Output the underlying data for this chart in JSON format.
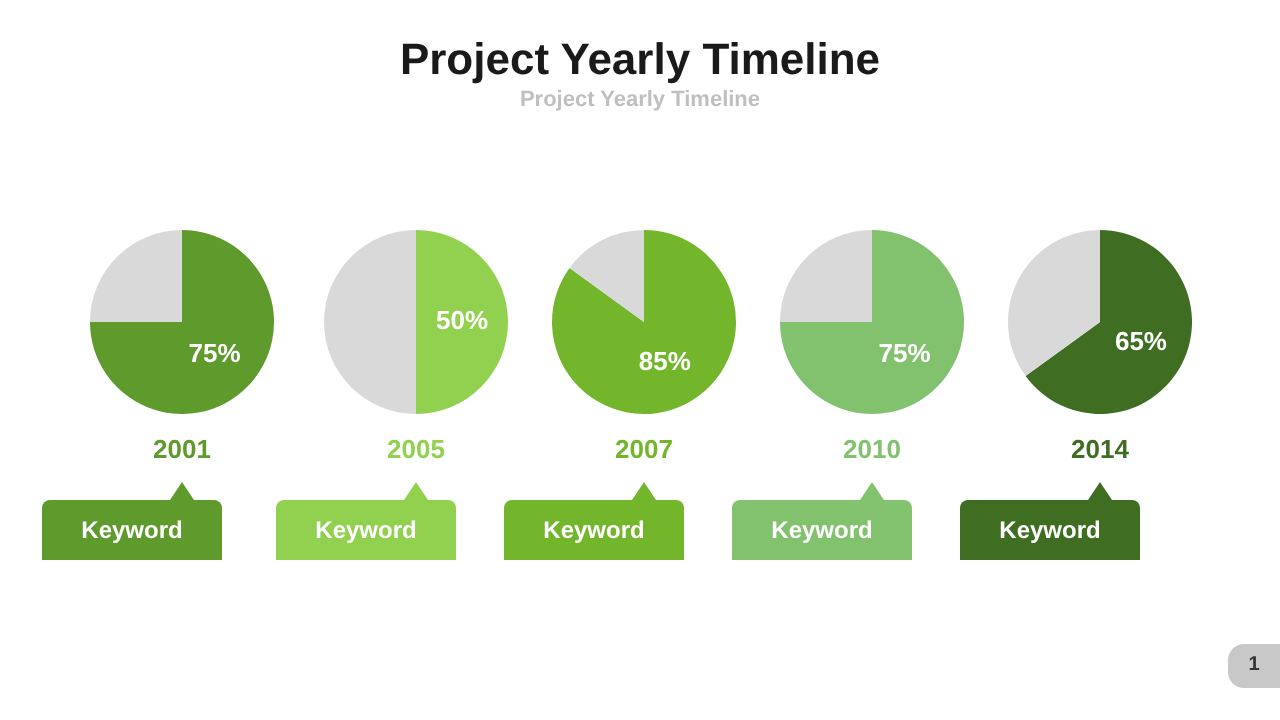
{
  "chart_data": [
    {
      "type": "other",
      "title": "Project Yearly Timeline",
      "subtitle": "Project Yearly Timeline",
      "annotations": [
        "1"
      ]
    },
    {
      "type": "pie",
      "categories": [
        null,
        null
      ],
      "values": [
        75,
        25
      ],
      "colors": [
        "#5e9a2c",
        "#d9d9d9"
      ],
      "value_labels": [
        "75%",
        null
      ],
      "xlabel": "2001",
      "annotations": [
        "Keyword"
      ]
    },
    {
      "type": "pie",
      "categories": [
        null,
        null
      ],
      "values": [
        50,
        50
      ],
      "colors": [
        "#92d050",
        "#d9d9d9"
      ],
      "value_labels": [
        "50%",
        null
      ],
      "xlabel": "2005",
      "annotations": [
        "Keyword"
      ]
    },
    {
      "type": "pie",
      "categories": [
        null,
        null
      ],
      "values": [
        85,
        15
      ],
      "colors": [
        "#74b62b",
        "#d9d9d9"
      ],
      "value_labels": [
        "85%",
        null
      ],
      "xlabel": "2007",
      "annotations": [
        "Keyword"
      ]
    },
    {
      "type": "pie",
      "categories": [
        null,
        null
      ],
      "values": [
        75,
        25
      ],
      "colors": [
        "#82c26f",
        "#d9d9d9"
      ],
      "value_labels": [
        "75%",
        null
      ],
      "xlabel": "2010",
      "annotations": [
        "Keyword"
      ]
    },
    {
      "type": "pie",
      "categories": [
        null,
        null
      ],
      "values": [
        65,
        35
      ],
      "colors": [
        "#3f6e23",
        "#d9d9d9"
      ],
      "value_labels": [
        "65%",
        null
      ],
      "xlabel": "2014",
      "annotations": [
        "Keyword"
      ]
    }
  ]
}
